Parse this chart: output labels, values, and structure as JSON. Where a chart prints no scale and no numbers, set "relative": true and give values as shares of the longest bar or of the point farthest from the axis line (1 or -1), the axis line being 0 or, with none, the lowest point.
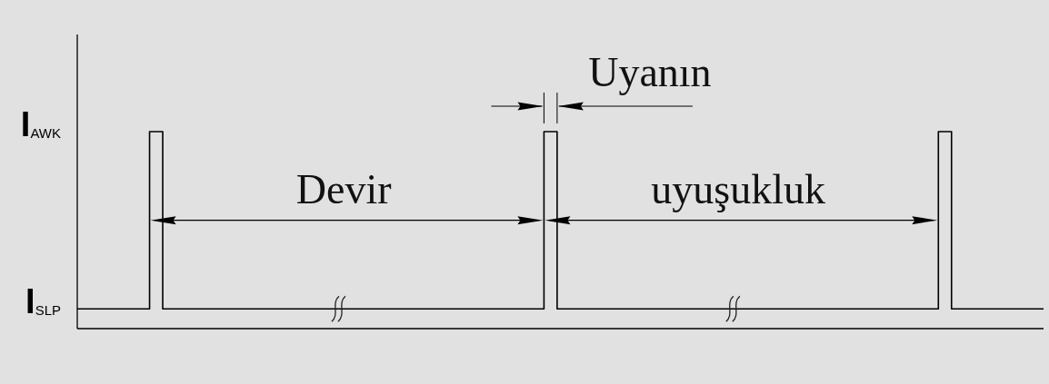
{
  "chart_data": {
    "type": "step",
    "relative": true,
    "categories": [
      null,
      null,
      null,
      null,
      null,
      null,
      null,
      null,
      null,
      null,
      null,
      null,
      null,
      null,
      null,
      null,
      null,
      null,
      null,
      null,
      null,
      null,
      null,
      null,
      null,
      null,
      null,
      null,
      null,
      null,
      null,
      null,
      null,
      null,
      null,
      null,
      null,
      null,
      null,
      null,
      null,
      null,
      null,
      null,
      null,
      null,
      null,
      null,
      null,
      null,
      null,
      null,
      null,
      null,
      null,
      null,
      null,
      null,
      null,
      null,
      null,
      null,
      null,
      null,
      null,
      null,
      null,
      null,
      null,
      null,
      null,
      null,
      null,
      null,
      null,
      null,
      null,
      null,
      null,
      null,
      null,
      null,
      null,
      null,
      null,
      null,
      null,
      null,
      null,
      null,
      null,
      null,
      null,
      null,
      null,
      null,
      null,
      null,
      null,
      null,
      null,
      null,
      null,
      null,
      null,
      null,
      null,
      null,
      null,
      null,
      null,
      null,
      null,
      null,
      null,
      null,
      null,
      null,
      null,
      null,
      null,
      null,
      null,
      null,
      null,
      null,
      null,
      null,
      null,
      null,
      null,
      null,
      null,
      null,
      null,
      null,
      null,
      null,
      null,
      null,
      null,
      null,
      null,
      null,
      null,
      null,
      null,
      null
    ],
    "values": [
      0.1,
      0.1,
      0.1,
      0.1,
      0.1,
      0.1,
      0.1,
      0.1,
      0.1,
      0.1,
      0.1,
      1,
      1,
      0.1,
      0.1,
      0.1,
      0.1,
      0.1,
      0.1,
      0.1,
      0.1,
      0.1,
      0.1,
      0.1,
      0.1,
      0.1,
      0.1,
      0.1,
      0.1,
      0.1,
      0.1,
      0.1,
      0.1,
      0.1,
      0.1,
      0.1,
      0.1,
      0.1,
      0.1,
      0.1,
      0.1,
      0.1,
      0.1,
      0.1,
      0.1,
      0.1,
      0.1,
      0.1,
      0.1,
      0.1,
      0.1,
      0.1,
      0.1,
      0.1,
      0.1,
      0.1,
      0.1,
      0.1,
      0.1,
      0.1,
      0.1,
      0.1,
      0.1,
      0.1,
      0.1,
      0.1,
      0.1,
      0.1,
      0.1,
      0.1,
      0.1,
      1,
      1,
      0.1,
      0.1,
      0.1,
      0.1,
      0.1,
      0.1,
      0.1,
      0.1,
      0.1,
      0.1,
      0.1,
      0.1,
      0.1,
      0.1,
      0.1,
      0.1,
      0.1,
      0.1,
      0.1,
      0.1,
      0.1,
      0.1,
      0.1,
      0.1,
      0.1,
      0.1,
      0.1,
      0.1,
      0.1,
      0.1,
      0.1,
      0.1,
      0.1,
      0.1,
      0.1,
      0.1,
      0.1,
      0.1,
      0.1,
      0.1,
      0.1,
      0.1,
      0.1,
      0.1,
      0.1,
      0.1,
      0.1,
      0.1,
      0.1,
      0.1,
      0.1,
      0.1,
      0.1,
      0.1,
      0.1,
      0.1,
      0.1,
      0.1,
      1,
      1,
      0.1,
      0.1,
      0.1,
      0.1,
      0.1,
      0.1,
      0.1,
      0.1,
      0.1,
      0.1,
      0.1,
      0.1,
      0.1,
      0.1,
      0.1
    ],
    "color": "#000000",
    "annotations": [
      "I$_{AWK}$",
      "I$_{SLP}$",
      "Uyanın",
      "Devir",
      "uyuşukluk"
    ]
  }
}
